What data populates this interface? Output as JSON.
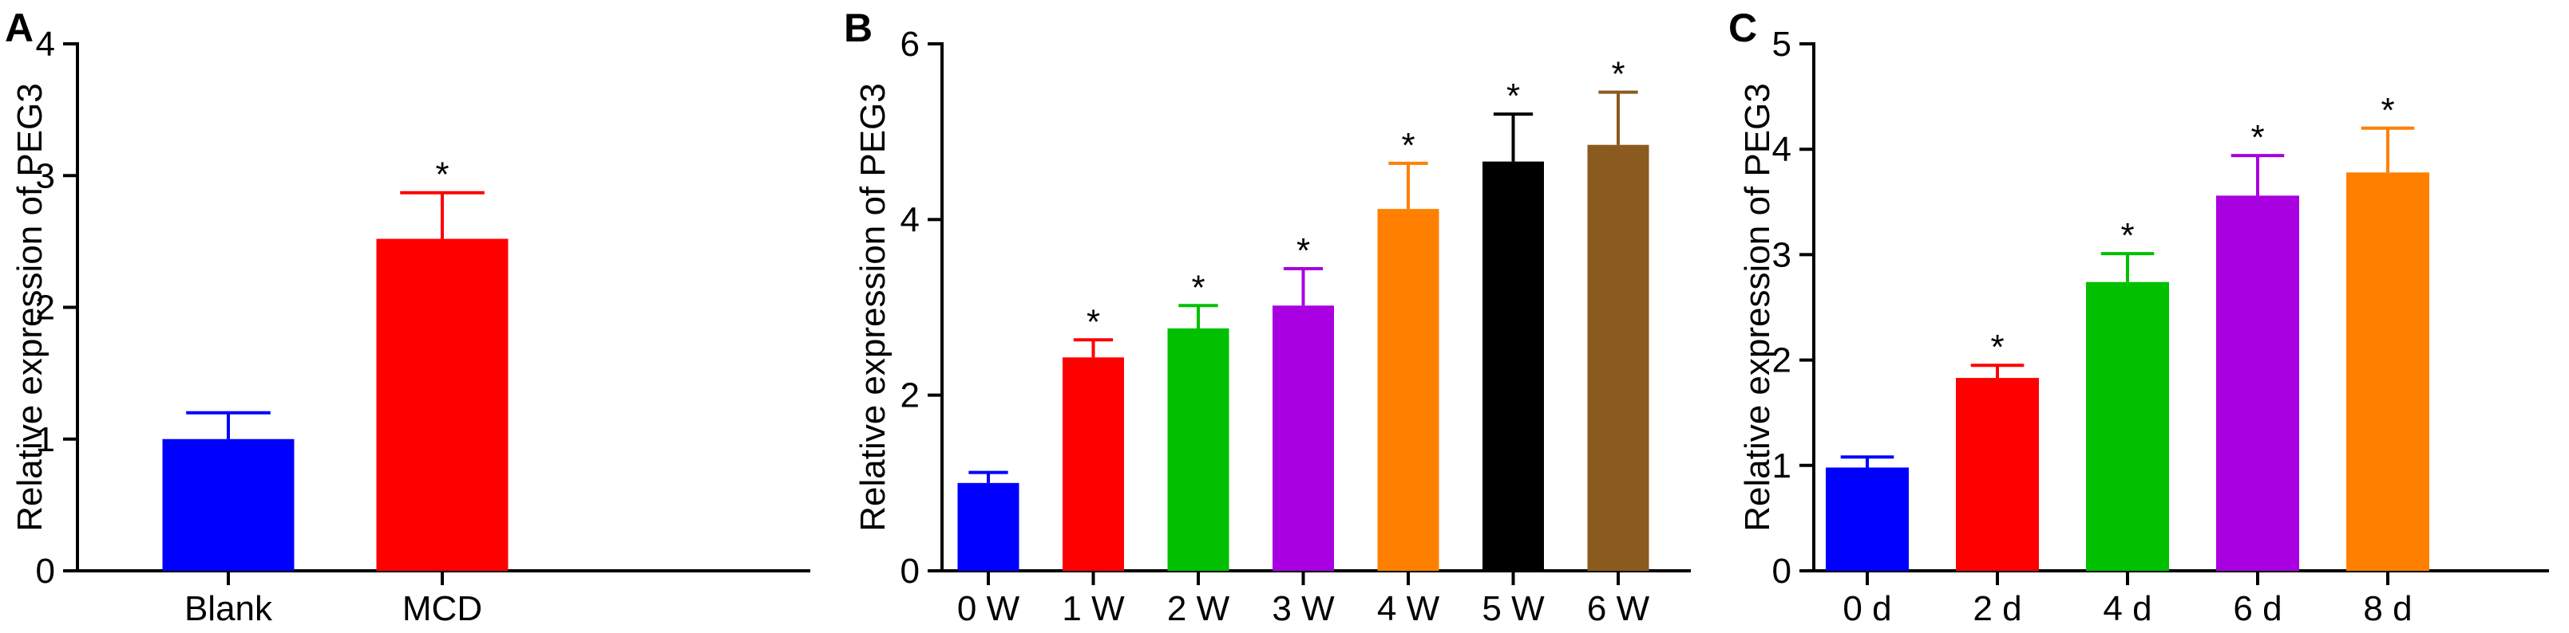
{
  "chart_data": [
    {
      "panel": "A",
      "type": "bar",
      "categories": [
        "Blank",
        "MCD"
      ],
      "values": [
        1.0,
        2.52
      ],
      "errors": [
        0.2,
        0.35
      ],
      "significance": [
        "",
        "*"
      ],
      "colors": [
        "#0000ff",
        "#ff0000"
      ],
      "ylabel": "Relative expression of PEG3",
      "ylim": [
        0,
        4
      ],
      "yticks": [
        "0",
        "1",
        "2",
        "3",
        "4"
      ],
      "grid": false,
      "legend": "none"
    },
    {
      "panel": "B",
      "type": "bar",
      "categories": [
        "0 W",
        "1 W",
        "2 W",
        "3 W",
        "4 W",
        "5 W",
        "6 W"
      ],
      "values": [
        1.0,
        2.43,
        2.76,
        3.02,
        4.12,
        4.66,
        4.85
      ],
      "errors": [
        0.12,
        0.2,
        0.26,
        0.42,
        0.52,
        0.54,
        0.6
      ],
      "significance": [
        "",
        "*",
        "*",
        "*",
        "*",
        "*",
        "*"
      ],
      "colors": [
        "#0000ff",
        "#ff0000",
        "#00c000",
        "#a800e0",
        "#ff8000",
        "#000000",
        "#8b5a1e"
      ],
      "ylabel": "Relative expression of PEG3",
      "ylim": [
        0,
        6
      ],
      "yticks": [
        "0",
        "2",
        "4",
        "6"
      ],
      "grid": false,
      "legend": "none"
    },
    {
      "panel": "C",
      "type": "bar",
      "categories": [
        "0 d",
        "2 d",
        "4 d",
        "6 d",
        "8 d"
      ],
      "values": [
        0.98,
        1.83,
        2.74,
        3.56,
        3.78
      ],
      "errors": [
        0.1,
        0.12,
        0.27,
        0.38,
        0.42
      ],
      "significance": [
        "",
        "*",
        "*",
        "*",
        "*"
      ],
      "colors": [
        "#0000ff",
        "#ff0000",
        "#00c000",
        "#a800e0",
        "#ff8000"
      ],
      "ylabel": "Relative expression of PEG3",
      "ylim": [
        0,
        5
      ],
      "yticks": [
        "0",
        "1",
        "2",
        "3",
        "4",
        "5"
      ],
      "grid": false,
      "legend": "none"
    }
  ]
}
